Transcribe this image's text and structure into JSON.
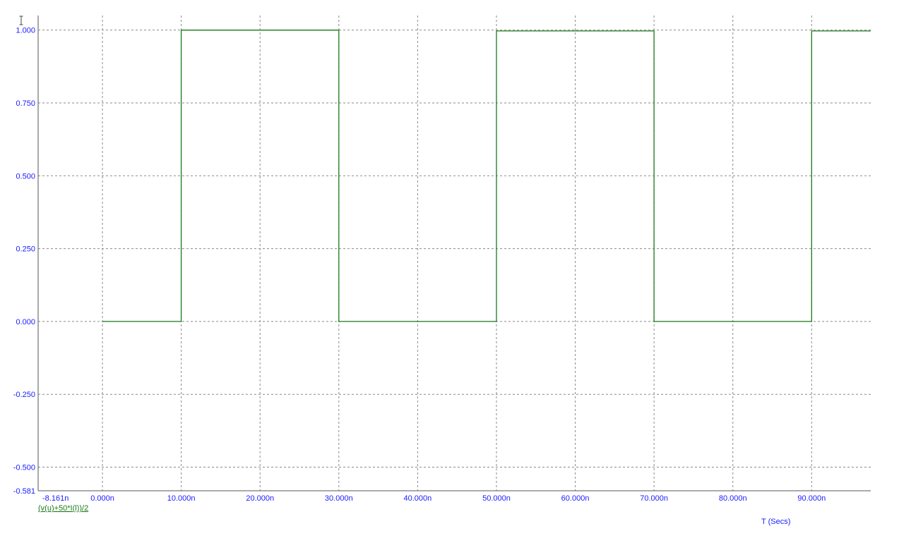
{
  "chart_data": {
    "type": "line",
    "title": "",
    "xlabel": "T (Secs)",
    "ylabel": "",
    "x_unit": "ns",
    "xlim": [
      -8.161,
      97.5
    ],
    "ylim": [
      -0.581,
      1.05
    ],
    "x_ticks": [
      {
        "value": -8.161,
        "label": "-8.161n"
      },
      {
        "value": 0,
        "label": "0.000n"
      },
      {
        "value": 10,
        "label": "10.000n"
      },
      {
        "value": 20,
        "label": "20.000n"
      },
      {
        "value": 30,
        "label": "30.000n"
      },
      {
        "value": 40,
        "label": "40.000n"
      },
      {
        "value": 50,
        "label": "50.000n"
      },
      {
        "value": 60,
        "label": "60.000n"
      },
      {
        "value": 70,
        "label": "70.000n"
      },
      {
        "value": 80,
        "label": "80.000n"
      },
      {
        "value": 90,
        "label": "90.000n"
      }
    ],
    "y_ticks": [
      {
        "value": 1.0,
        "label": "1.000"
      },
      {
        "value": 0.75,
        "label": "0.750"
      },
      {
        "value": 0.5,
        "label": "0.500"
      },
      {
        "value": 0.25,
        "label": "0.250"
      },
      {
        "value": 0.0,
        "label": "0.000"
      },
      {
        "value": -0.25,
        "label": "-0.250"
      },
      {
        "value": -0.5,
        "label": "-0.500"
      },
      {
        "value": -0.581,
        "label": "-0.581"
      }
    ],
    "grid": true,
    "legend": "bottom-left",
    "series": [
      {
        "name": "(v(u)+50*I(l))/2",
        "color": "#1a7a1a",
        "x": [
          0,
          10,
          10,
          30,
          30,
          50,
          50,
          70,
          70,
          90,
          90,
          97.5
        ],
        "y": [
          0,
          0,
          1.0,
          1.0,
          0,
          0,
          0.997,
          0.997,
          0,
          0,
          0.997,
          0.997
        ]
      }
    ]
  }
}
